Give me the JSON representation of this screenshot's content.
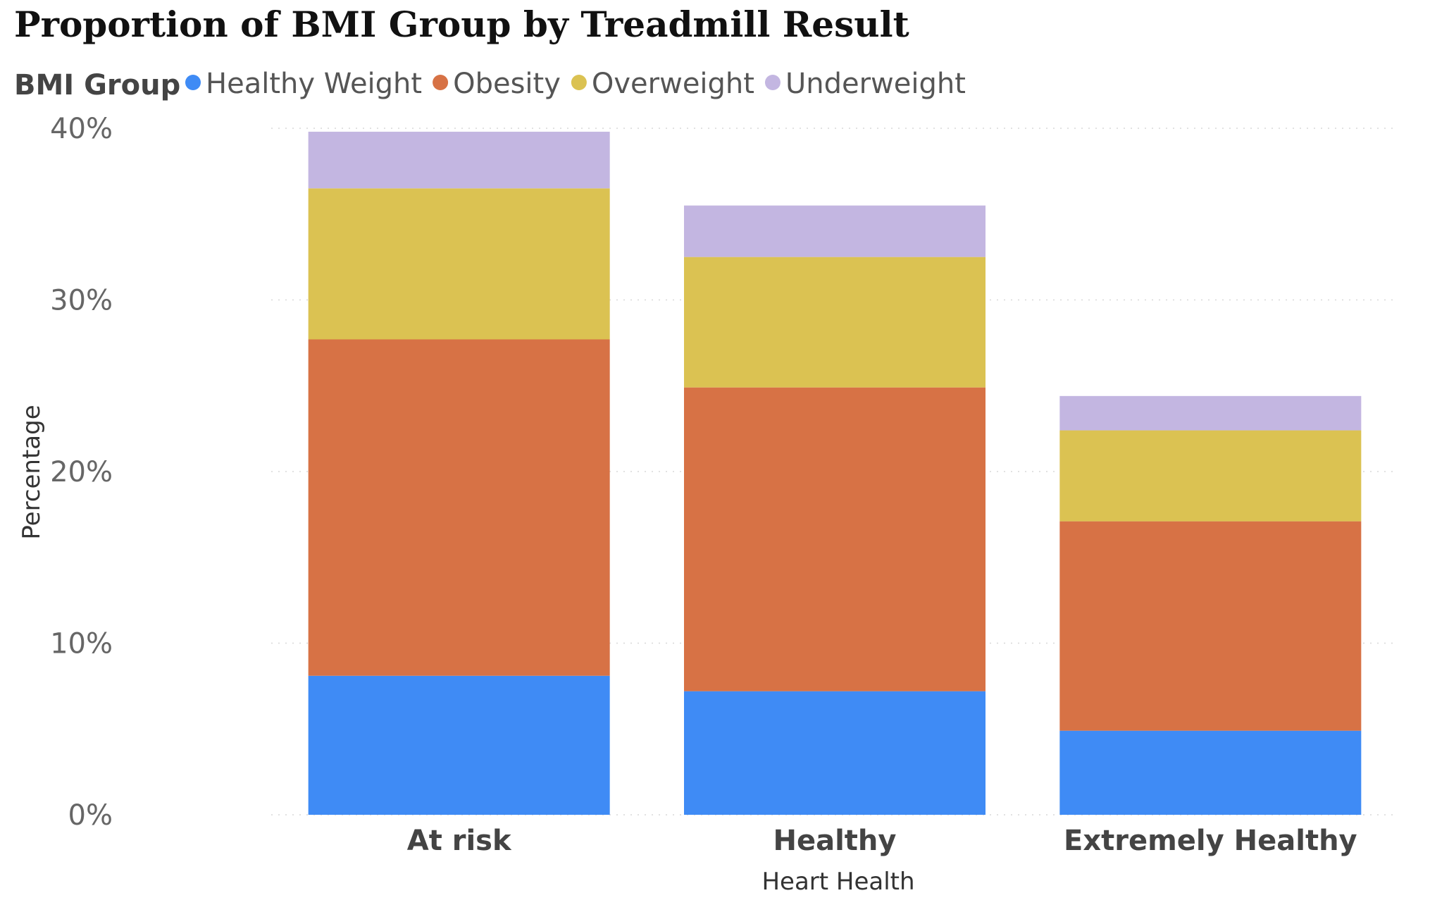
{
  "chart_data": {
    "type": "bar",
    "stacked": true,
    "title": "Proportion of BMI Group by Treadmill Result",
    "legend_title": "BMI Group",
    "legend_position": "top-left",
    "xlabel": "Heart Health",
    "ylabel": "Percentage",
    "categories": [
      "At risk",
      "Healthy",
      "Extremely Healthy"
    ],
    "series": [
      {
        "name": "Healthy Weight",
        "color": "#3F8BF5",
        "values": [
          8.1,
          7.2,
          4.9
        ]
      },
      {
        "name": "Obesity",
        "color": "#D77245",
        "values": [
          19.6,
          17.7,
          12.2
        ]
      },
      {
        "name": "Overweight",
        "color": "#DBC252",
        "values": [
          8.8,
          7.6,
          5.3
        ]
      },
      {
        "name": "Underweight",
        "color": "#C3B6E1",
        "values": [
          3.3,
          3.0,
          2.0
        ]
      }
    ],
    "ylim": [
      0,
      40
    ],
    "yticks": [
      0,
      10,
      20,
      30,
      40
    ],
    "ytick_labels": [
      "0%",
      "10%",
      "20%",
      "30%",
      "40%"
    ],
    "grid": true
  }
}
